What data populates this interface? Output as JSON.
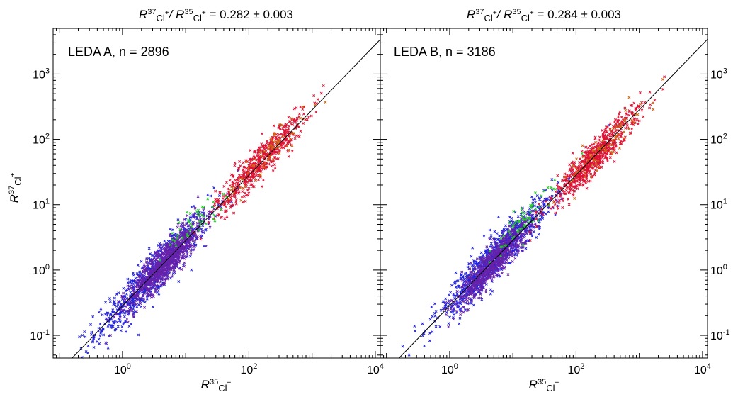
{
  "chart_data": [
    {
      "type": "scatter",
      "title": {
        "pre": "R",
        "sup1": "37",
        "sub1": "Cl",
        "sup_a": "+",
        "mid": "/ R",
        "sup2": "35",
        "sub2": "Cl",
        "sup_b": "+",
        "post": " = 0.282 ± 0.003"
      },
      "annotation": "LEDA A, n = 2896",
      "xlabel": {
        "pre": "R",
        "sup": "35",
        "sub": "Cl",
        "subsup": "+"
      },
      "ylabel": {
        "pre": "R",
        "sup": "37",
        "sub": "Cl",
        "subsup": "+"
      },
      "xscale": "log",
      "yscale": "log",
      "xlim": [
        0.08,
        12000
      ],
      "ylim": [
        0.045,
        5000
      ],
      "xticks": [
        {
          "v": 1,
          "base": "10",
          "exp": "0"
        },
        {
          "v": 100,
          "base": "10",
          "exp": "2"
        },
        {
          "v": 10000,
          "base": "10",
          "exp": "4"
        }
      ],
      "yticks": [
        {
          "v": 0.1,
          "base": "10",
          "exp": "-1"
        },
        {
          "v": 1,
          "base": "10",
          "exp": "0"
        },
        {
          "v": 10,
          "base": "10",
          "exp": "1"
        },
        {
          "v": 100,
          "base": "10",
          "exp": "2"
        },
        {
          "v": 1000,
          "base": "10",
          "exp": "3"
        }
      ],
      "reference_line": {
        "slope": 0.282,
        "label": ""
      },
      "marker": "x",
      "clusters": [
        {
          "color": "#2222dd",
          "x_center": 3,
          "y_center": 0.85,
          "n": 700,
          "x_spread_decades": 0.45,
          "scatter_decades": 0.18
        },
        {
          "color": "#6622aa",
          "x_center": 5,
          "y_center": 1.4,
          "n": 900,
          "x_spread_decades": 0.3,
          "scatter_decades": 0.14
        },
        {
          "color": "#dd1133",
          "x_center": 150,
          "y_center": 45,
          "n": 550,
          "x_spread_decades": 0.35,
          "scatter_decades": 0.14
        },
        {
          "color": "#22cc22",
          "x_center": 15,
          "y_center": 6,
          "n": 45,
          "x_spread_decades": 0.25,
          "scatter_decades": 0.12
        },
        {
          "color": "#cc6611",
          "x_center": 200,
          "y_center": 60,
          "n": 70,
          "x_spread_decades": 0.35,
          "scatter_decades": 0.14
        }
      ]
    },
    {
      "type": "scatter",
      "title": {
        "pre": "R",
        "sup1": "37",
        "sub1": "Cl",
        "sup_a": "+",
        "mid": "/ R",
        "sup2": "35",
        "sub2": "Cl",
        "sup_b": "+",
        "post": " = 0.284 ± 0.003"
      },
      "annotation": "LEDA B, n = 3186",
      "xlabel": {
        "pre": "R",
        "sup": "35",
        "sub": "Cl",
        "subsup": "+"
      },
      "ylabel": {
        "pre": "",
        "sup": "",
        "sub": "",
        "subsup": ""
      },
      "xscale": "log",
      "yscale": "log",
      "xlim": [
        0.08,
        12000
      ],
      "ylim": [
        0.045,
        5000
      ],
      "xticks": [
        {
          "v": 1,
          "base": "10",
          "exp": "0"
        },
        {
          "v": 100,
          "base": "10",
          "exp": "2"
        },
        {
          "v": 10000,
          "base": "10",
          "exp": "4"
        }
      ],
      "yticks": [
        {
          "v": 0.1,
          "base": "10",
          "exp": "-1"
        },
        {
          "v": 1,
          "base": "10",
          "exp": "0"
        },
        {
          "v": 10,
          "base": "10",
          "exp": "1"
        },
        {
          "v": 100,
          "base": "10",
          "exp": "2"
        },
        {
          "v": 1000,
          "base": "10",
          "exp": "3"
        }
      ],
      "yticks_side": "right",
      "reference_line": {
        "slope": 0.284,
        "label": ""
      },
      "marker": "x",
      "clusters": [
        {
          "color": "#2222dd",
          "x_center": 5,
          "y_center": 1.5,
          "n": 900,
          "x_spread_decades": 0.45,
          "scatter_decades": 0.16
        },
        {
          "color": "#6622aa",
          "x_center": 5,
          "y_center": 1.3,
          "n": 700,
          "x_spread_decades": 0.3,
          "scatter_decades": 0.13
        },
        {
          "color": "#dd1133",
          "x_center": 200,
          "y_center": 55,
          "n": 650,
          "x_spread_decades": 0.35,
          "scatter_decades": 0.13
        },
        {
          "color": "#22cc22",
          "x_center": 15,
          "y_center": 6,
          "n": 60,
          "x_spread_decades": 0.25,
          "scatter_decades": 0.12
        },
        {
          "color": "#cc6611",
          "x_center": 300,
          "y_center": 80,
          "n": 80,
          "x_spread_decades": 0.35,
          "scatter_decades": 0.13
        }
      ]
    }
  ]
}
